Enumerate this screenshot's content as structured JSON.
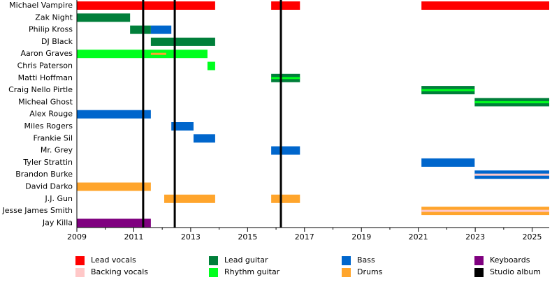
{
  "chart_data": {
    "type": "timeline",
    "roles": [
      {
        "name": "Lead vocals",
        "color": "#ff0000"
      },
      {
        "name": "Backing vocals",
        "color": "#ffc8c8"
      },
      {
        "name": "Lead guitar",
        "color": "#007f3a"
      },
      {
        "name": "Rhythm guitar",
        "color": "#00ff1e"
      },
      {
        "name": "Bass",
        "color": "#0066cc"
      },
      {
        "name": "Drums",
        "color": "#ffa52c"
      },
      {
        "name": "Keyboards",
        "color": "#7f007f"
      }
    ],
    "albums": {
      "name": "Studio album",
      "color": "#000000",
      "dates": [
        2011.33,
        2012.44,
        2016.17
      ]
    },
    "rows": [
      {
        "name": "Michael Vampire",
        "periods": [
          {
            "role": 0,
            "start": 2009,
            "end": 2013.86
          },
          {
            "role": 0,
            "start": 2015.83,
            "end": 2016.84
          },
          {
            "role": 0,
            "start": 2021.11,
            "end": 2025.6
          }
        ]
      },
      {
        "name": "Zak Night",
        "periods": [
          {
            "role": 2,
            "start": 2009,
            "end": 2010.87
          }
        ]
      },
      {
        "name": "Philip Kross",
        "periods": [
          {
            "role": 2,
            "start": 2010.87,
            "end": 2011.6
          },
          {
            "role": 4,
            "start": 2011.6,
            "end": 2012.32
          }
        ]
      },
      {
        "name": "DJ Black",
        "periods": [
          {
            "role": 2,
            "start": 2011.6,
            "end": 2013.86
          }
        ]
      },
      {
        "name": "Aaron Graves",
        "periods": [
          {
            "role": 3,
            "start": 2009,
            "end": 2013.59
          },
          {
            "role": 5,
            "start": 2011.6,
            "end": 2012.14,
            "thin": true
          }
        ]
      },
      {
        "name": "Chris Paterson",
        "periods": [
          {
            "role": 3,
            "start": 2013.59,
            "end": 2013.86
          }
        ]
      },
      {
        "name": "Matti Hoffman",
        "periods": [
          {
            "role": 2,
            "start": 2015.83,
            "end": 2016.84
          },
          {
            "role": 3,
            "start": 2015.83,
            "end": 2016.84,
            "thin": true
          }
        ]
      },
      {
        "name": "Craig Nello Pirtle",
        "periods": [
          {
            "role": 2,
            "start": 2021.11,
            "end": 2022.98
          },
          {
            "role": 3,
            "start": 2021.11,
            "end": 2022.98,
            "thin": true
          }
        ]
      },
      {
        "name": "Micheal Ghost",
        "periods": [
          {
            "role": 2,
            "start": 2022.98,
            "end": 2025.6
          },
          {
            "role": 3,
            "start": 2022.98,
            "end": 2025.6,
            "thin": true
          }
        ]
      },
      {
        "name": "Alex Rouge",
        "periods": [
          {
            "role": 4,
            "start": 2009,
            "end": 2011.6
          }
        ]
      },
      {
        "name": "Miles Rogers",
        "periods": [
          {
            "role": 4,
            "start": 2012.32,
            "end": 2013.1
          }
        ]
      },
      {
        "name": "Frankie Sil",
        "periods": [
          {
            "role": 4,
            "start": 2013.1,
            "end": 2013.86
          }
        ]
      },
      {
        "name": "Mr. Grey",
        "periods": [
          {
            "role": 4,
            "start": 2015.83,
            "end": 2016.84
          }
        ]
      },
      {
        "name": "Tyler Strattin",
        "periods": [
          {
            "role": 4,
            "start": 2021.11,
            "end": 2022.98
          }
        ]
      },
      {
        "name": "Brandon Burke",
        "periods": [
          {
            "role": 4,
            "start": 2022.98,
            "end": 2025.6
          },
          {
            "role": 1,
            "start": 2022.98,
            "end": 2025.6,
            "thin": true
          }
        ]
      },
      {
        "name": "David Darko",
        "periods": [
          {
            "role": 5,
            "start": 2009,
            "end": 2011.6
          }
        ]
      },
      {
        "name": "J.J. Gun",
        "periods": [
          {
            "role": 5,
            "start": 2012.07,
            "end": 2013.86
          },
          {
            "role": 5,
            "start": 2015.83,
            "end": 2016.84
          }
        ]
      },
      {
        "name": "Jesse James Smith",
        "periods": [
          {
            "role": 5,
            "start": 2021.11,
            "end": 2025.6
          },
          {
            "role": 1,
            "start": 2021.11,
            "end": 2025.6,
            "thin": true
          }
        ]
      },
      {
        "name": "Jay Killa",
        "periods": [
          {
            "role": 6,
            "start": 2009,
            "end": 2011.6
          }
        ]
      }
    ],
    "xlim": [
      2009,
      2025.6
    ],
    "xticks": [
      2009,
      2011,
      2013,
      2015,
      2017,
      2019,
      2021,
      2023,
      2025
    ],
    "xminorticks": [
      2010,
      2012,
      2014,
      2016,
      2018,
      2020,
      2022,
      2024
    ]
  }
}
